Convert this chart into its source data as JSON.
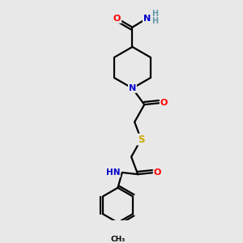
{
  "bg_color": "#e8e8e8",
  "atom_colors": {
    "C": "#000000",
    "N": "#0000cc",
    "O": "#ff0000",
    "S": "#ccaa00",
    "H": "#6699aa"
  },
  "bond_color": "#000000",
  "bond_width": 1.6,
  "figsize": [
    3.0,
    3.0
  ],
  "dpi": 100,
  "xlim": [
    0,
    10
  ],
  "ylim": [
    0,
    10
  ]
}
